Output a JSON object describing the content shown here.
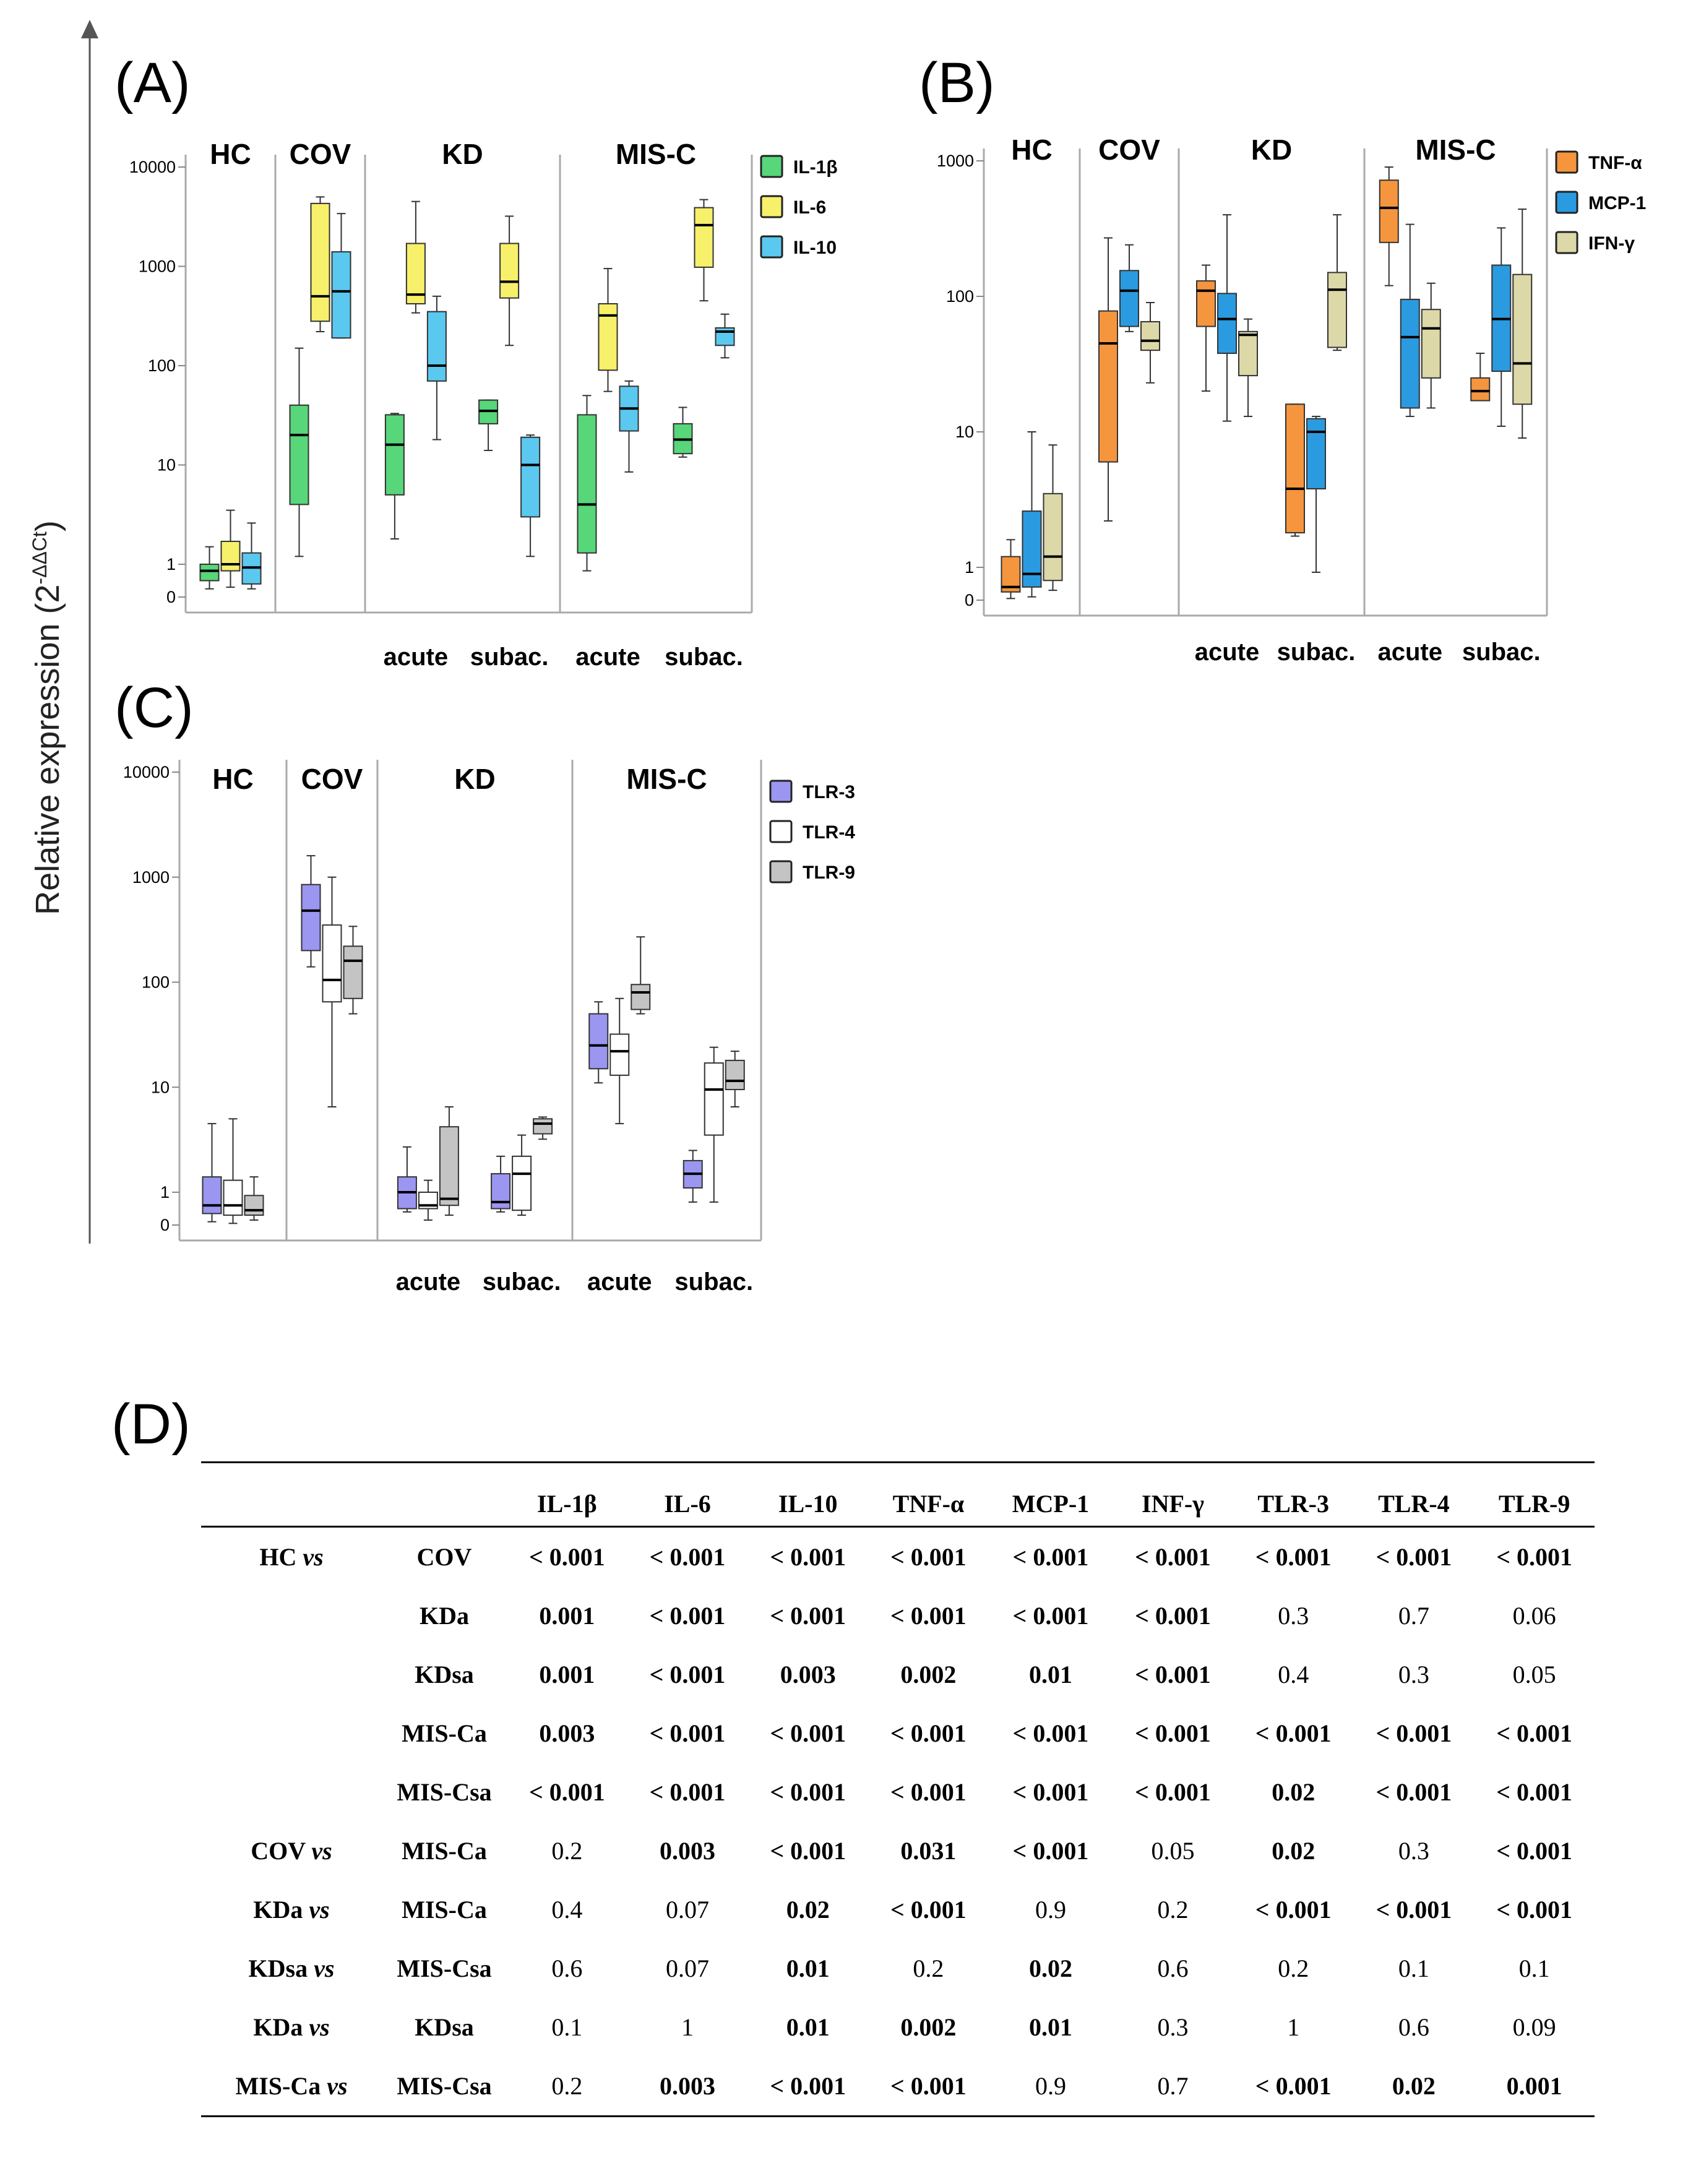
{
  "y_axis_label": "Relative expression (2",
  "y_axis_label_sup": "-ΔΔCt",
  "y_axis_label_close": ")",
  "y_tick_labels": [
    "10000",
    "1000",
    "100",
    "10",
    "1",
    "0"
  ],
  "chart_data": [
    {
      "type": "box",
      "panel": "(A)",
      "scale": "log (pseudo-log with 0 tick)",
      "ylim": [
        0,
        10000
      ],
      "groups": [
        "HC",
        "COV",
        "KD",
        "MIS-C"
      ],
      "subgroup_labels": {
        "KD": [
          "acute",
          "subac."
        ],
        "MIS-C": [
          "acute",
          "subac."
        ]
      },
      "categories": [
        "HC",
        "COV",
        "KD acute",
        "KD subac.",
        "MIS-C acute",
        "MIS-C subac."
      ],
      "legend": [
        "IL-1β",
        "IL-6",
        "IL-10"
      ],
      "colors": [
        "#57d67a",
        "#f7f06a",
        "#5bc8f0"
      ],
      "series": [
        {
          "name": "IL-1β",
          "boxes": [
            {
              "min": 0.25,
              "q1": 0.5,
              "median": 0.8,
              "q3": 1.0,
              "max": 1.5
            },
            {
              "min": 1.2,
              "q1": 4,
              "median": 20,
              "q3": 40,
              "max": 150
            },
            {
              "min": 1.8,
              "q1": 5,
              "median": 16,
              "q3": 32,
              "max": 33
            },
            {
              "min": 14,
              "q1": 26,
              "median": 35,
              "q3": 45,
              "max": 45
            },
            {
              "min": 0.8,
              "q1": 1.3,
              "median": 4,
              "q3": 32,
              "max": 50
            },
            {
              "min": 12,
              "q1": 13,
              "median": 18,
              "q3": 26,
              "max": 38
            }
          ]
        },
        {
          "name": "IL-6",
          "boxes": [
            {
              "min": 0.3,
              "q1": 0.8,
              "median": 1.0,
              "q3": 1.7,
              "max": 3.5
            },
            {
              "min": 220,
              "q1": 280,
              "median": 500,
              "q3": 4300,
              "max": 5000
            },
            {
              "min": 340,
              "q1": 420,
              "median": 520,
              "q3": 1700,
              "max": 4500
            },
            {
              "min": 160,
              "q1": 480,
              "median": 700,
              "q3": 1700,
              "max": 3200
            },
            {
              "min": 55,
              "q1": 90,
              "median": 320,
              "q3": 420,
              "max": 950
            },
            {
              "min": 450,
              "q1": 980,
              "median": 2600,
              "q3": 3900,
              "max": 4700
            }
          ]
        },
        {
          "name": "IL-10",
          "boxes": [
            {
              "min": 0.25,
              "q1": 0.4,
              "median": 0.9,
              "q3": 1.3,
              "max": 2.6
            },
            {
              "min": 190,
              "q1": 190,
              "median": 560,
              "q3": 1400,
              "max": 3400
            },
            {
              "min": 18,
              "q1": 70,
              "median": 100,
              "q3": 350,
              "max": 500
            },
            {
              "min": 1.2,
              "q1": 3,
              "median": 10,
              "q3": 19,
              "max": 20
            },
            {
              "min": 8.5,
              "q1": 22,
              "median": 37,
              "q3": 62,
              "max": 70
            },
            {
              "min": 120,
              "q1": 160,
              "median": 220,
              "q3": 240,
              "max": 330
            }
          ]
        }
      ]
    },
    {
      "type": "box",
      "panel": "(B)",
      "scale": "log (pseudo-log with 0 tick)",
      "ylim": [
        0,
        1000
      ],
      "groups": [
        "HC",
        "COV",
        "KD",
        "MIS-C"
      ],
      "subgroup_labels": {
        "KD": [
          "acute",
          "subac."
        ],
        "MIS-C": [
          "acute",
          "subac."
        ]
      },
      "categories": [
        "HC",
        "COV",
        "KD acute",
        "KD subac.",
        "MIS-C acute",
        "MIS-C subac."
      ],
      "legend": [
        "TNF-α",
        "MCP-1",
        "IFN-γ"
      ],
      "colors": [
        "#f5953e",
        "#2a9be0",
        "#dcd8a8"
      ],
      "series": [
        {
          "name": "TNF-α",
          "boxes": [
            {
              "min": 0.05,
              "q1": 0.25,
              "median": 0.4,
              "q3": 1.2,
              "max": 1.6
            },
            {
              "min": 2.2,
              "q1": 6,
              "median": 45,
              "q3": 78,
              "max": 270
            },
            {
              "min": 20,
              "q1": 60,
              "median": 110,
              "q3": 130,
              "max": 170
            },
            {
              "min": 1.7,
              "q1": 1.8,
              "median": 3.8,
              "q3": 16,
              "max": 16
            },
            {
              "min": 120,
              "q1": 250,
              "median": 450,
              "q3": 720,
              "max": 900
            },
            {
              "min": 17,
              "q1": 17,
              "median": 20,
              "q3": 25,
              "max": 38
            }
          ]
        },
        {
          "name": "MCP-1",
          "boxes": [
            {
              "min": 0.1,
              "q1": 0.4,
              "median": 0.8,
              "q3": 2.6,
              "max": 10
            },
            {
              "min": 55,
              "q1": 60,
              "median": 110,
              "q3": 155,
              "max": 240
            },
            {
              "min": 12,
              "q1": 38,
              "median": 68,
              "q3": 105,
              "max": 400
            },
            {
              "min": 0.85,
              "q1": 3.8,
              "median": 10,
              "q3": 12.5,
              "max": 13
            },
            {
              "min": 13,
              "q1": 15,
              "median": 50,
              "q3": 95,
              "max": 340
            },
            {
              "min": 11,
              "q1": 28,
              "median": 68,
              "q3": 170,
              "max": 320
            }
          ]
        },
        {
          "name": "IFN-γ",
          "boxes": [
            {
              "min": 0.3,
              "q1": 0.6,
              "median": 1.2,
              "q3": 3.5,
              "max": 8
            },
            {
              "min": 23,
              "q1": 40,
              "median": 47,
              "q3": 65,
              "max": 90
            },
            {
              "min": 13,
              "q1": 26,
              "median": 52,
              "q3": 55,
              "max": 68
            },
            {
              "min": 40,
              "q1": 42,
              "median": 112,
              "q3": 150,
              "max": 400
            },
            {
              "min": 15,
              "q1": 25,
              "median": 58,
              "q3": 80,
              "max": 125
            },
            {
              "min": 9,
              "q1": 16,
              "median": 32,
              "q3": 145,
              "max": 440
            }
          ]
        }
      ]
    },
    {
      "type": "box",
      "panel": "(C)",
      "scale": "log (pseudo-log with 0 tick)",
      "ylim": [
        0,
        10000
      ],
      "groups": [
        "HC",
        "COV",
        "KD",
        "MIS-C"
      ],
      "subgroup_labels": {
        "KD": [
          "acute",
          "subac."
        ],
        "MIS-C": [
          "acute",
          "subac."
        ]
      },
      "categories": [
        "HC",
        "COV",
        "KD acute",
        "KD subac.",
        "MIS-C acute",
        "MIS-C subac."
      ],
      "legend": [
        "TLR-3",
        "TLR-4",
        "TLR-9"
      ],
      "colors": [
        "#9b96f0",
        "#ffffff",
        "#c4c4c4"
      ],
      "series": [
        {
          "name": "TLR-3",
          "boxes": [
            {
              "min": 0.1,
              "q1": 0.35,
              "median": 0.6,
              "q3": 1.4,
              "max": 4.5
            },
            {
              "min": 140,
              "q1": 200,
              "median": 480,
              "q3": 850,
              "max": 1600
            },
            {
              "min": 0.4,
              "q1": 0.5,
              "median": 1.0,
              "q3": 1.4,
              "max": 2.7
            },
            {
              "min": 0.4,
              "q1": 0.5,
              "median": 0.7,
              "q3": 1.5,
              "max": 2.2
            },
            {
              "min": 11,
              "q1": 15,
              "median": 25,
              "q3": 50,
              "max": 65
            },
            {
              "min": 0.7,
              "q1": 1.1,
              "median": 1.5,
              "q3": 2.0,
              "max": 2.5
            }
          ]
        },
        {
          "name": "TLR-4",
          "boxes": [
            {
              "min": 0.05,
              "q1": 0.3,
              "median": 0.6,
              "q3": 1.3,
              "max": 5
            },
            {
              "min": 6.5,
              "q1": 65,
              "median": 105,
              "q3": 350,
              "max": 1000
            },
            {
              "min": 0.15,
              "q1": 0.5,
              "median": 0.6,
              "q3": 1.0,
              "max": 1.3
            },
            {
              "min": 0.3,
              "q1": 0.45,
              "median": 1.5,
              "q3": 2.2,
              "max": 3.5
            },
            {
              "min": 4.5,
              "q1": 13,
              "median": 22,
              "q3": 32,
              "max": 70
            },
            {
              "min": 0.7,
              "q1": 3.5,
              "median": 9.5,
              "q3": 17,
              "max": 24
            }
          ]
        },
        {
          "name": "TLR-9",
          "boxes": [
            {
              "min": 0.15,
              "q1": 0.3,
              "median": 0.45,
              "q3": 0.9,
              "max": 1.4
            },
            {
              "min": 50,
              "q1": 70,
              "median": 160,
              "q3": 220,
              "max": 340
            },
            {
              "min": 0.3,
              "q1": 0.6,
              "median": 0.8,
              "q3": 4.2,
              "max": 6.5
            },
            {
              "min": 3.2,
              "q1": 3.6,
              "median": 4.5,
              "q3": 5,
              "max": 5.2
            },
            {
              "min": 50,
              "q1": 55,
              "median": 80,
              "q3": 95,
              "max": 270
            },
            {
              "min": 6.5,
              "q1": 9.5,
              "median": 11.5,
              "q3": 18,
              "max": 22
            }
          ]
        }
      ]
    },
    {
      "type": "table",
      "panel": "(D)",
      "columns": [
        "IL-1β",
        "IL-6",
        "IL-10",
        "TNF-α",
        "MCP-1",
        "INF-γ",
        "TLR-3",
        "TLR-4",
        "TLR-9"
      ],
      "rows": [
        {
          "left": "HC vs",
          "right": "COV",
          "values": [
            "< 0.001",
            "< 0.001",
            "< 0.001",
            "< 0.001",
            "< 0.001",
            "< 0.001",
            "< 0.001",
            "< 0.001",
            "< 0.001"
          ],
          "bold": [
            1,
            1,
            1,
            1,
            1,
            1,
            1,
            1,
            1
          ]
        },
        {
          "left": "",
          "right": "KDa",
          "values": [
            "0.001",
            "< 0.001",
            "< 0.001",
            "< 0.001",
            "< 0.001",
            "< 0.001",
            "0.3",
            "0.7",
            "0.06"
          ],
          "bold": [
            1,
            1,
            1,
            1,
            1,
            1,
            0,
            0,
            0
          ]
        },
        {
          "left": "",
          "right": "KDsa",
          "values": [
            "0.001",
            "< 0.001",
            "0.003",
            "0.002",
            "0.01",
            "< 0.001",
            "0.4",
            "0.3",
            "0.05"
          ],
          "bold": [
            1,
            1,
            1,
            1,
            1,
            1,
            0,
            0,
            0
          ]
        },
        {
          "left": "",
          "right": "MIS-Ca",
          "values": [
            "0.003",
            "< 0.001",
            "< 0.001",
            "< 0.001",
            "< 0.001",
            "< 0.001",
            "< 0.001",
            "< 0.001",
            "< 0.001"
          ],
          "bold": [
            1,
            1,
            1,
            1,
            1,
            1,
            1,
            1,
            1
          ]
        },
        {
          "left": "",
          "right": "MIS-Csa",
          "values": [
            "< 0.001",
            "< 0.001",
            "< 0.001",
            "< 0.001",
            "< 0.001",
            "< 0.001",
            "0.02",
            "< 0.001",
            "< 0.001"
          ],
          "bold": [
            1,
            1,
            1,
            1,
            1,
            1,
            1,
            1,
            1
          ]
        },
        {
          "left": "COV vs",
          "right": "MIS-Ca",
          "values": [
            "0.2",
            "0.003",
            "< 0.001",
            "0.031",
            "< 0.001",
            "0.05",
            "0.02",
            "0.3",
            "< 0.001"
          ],
          "bold": [
            0,
            1,
            1,
            1,
            1,
            0,
            1,
            0,
            1
          ]
        },
        {
          "left": "KDa vs",
          "right": "MIS-Ca",
          "values": [
            "0.4",
            "0.07",
            "0.02",
            "< 0.001",
            "0.9",
            "0.2",
            "< 0.001",
            "< 0.001",
            "< 0.001"
          ],
          "bold": [
            0,
            0,
            1,
            1,
            0,
            0,
            1,
            1,
            1
          ]
        },
        {
          "left": "KDsa vs",
          "right": "MIS-Csa",
          "values": [
            "0.6",
            "0.07",
            "0.01",
            "0.2",
            "0.02",
            "0.6",
            "0.2",
            "0.1",
            "0.1"
          ],
          "bold": [
            0,
            0,
            1,
            0,
            1,
            0,
            0,
            0,
            0
          ]
        },
        {
          "left": "KDa vs",
          "right": "KDsa",
          "values": [
            "0.1",
            "1",
            "0.01",
            "0.002",
            "0.01",
            "0.3",
            "1",
            "0.6",
            "0.09"
          ],
          "bold": [
            0,
            0,
            1,
            1,
            1,
            0,
            0,
            0,
            0
          ]
        },
        {
          "left": "MIS-Ca vs",
          "right": "MIS-Csa",
          "values": [
            "0.2",
            "0.003",
            "< 0.001",
            "< 0.001",
            "0.9",
            "0.7",
            "< 0.001",
            "0.02",
            "0.001"
          ],
          "bold": [
            0,
            1,
            1,
            1,
            0,
            0,
            1,
            1,
            1
          ]
        }
      ]
    }
  ]
}
